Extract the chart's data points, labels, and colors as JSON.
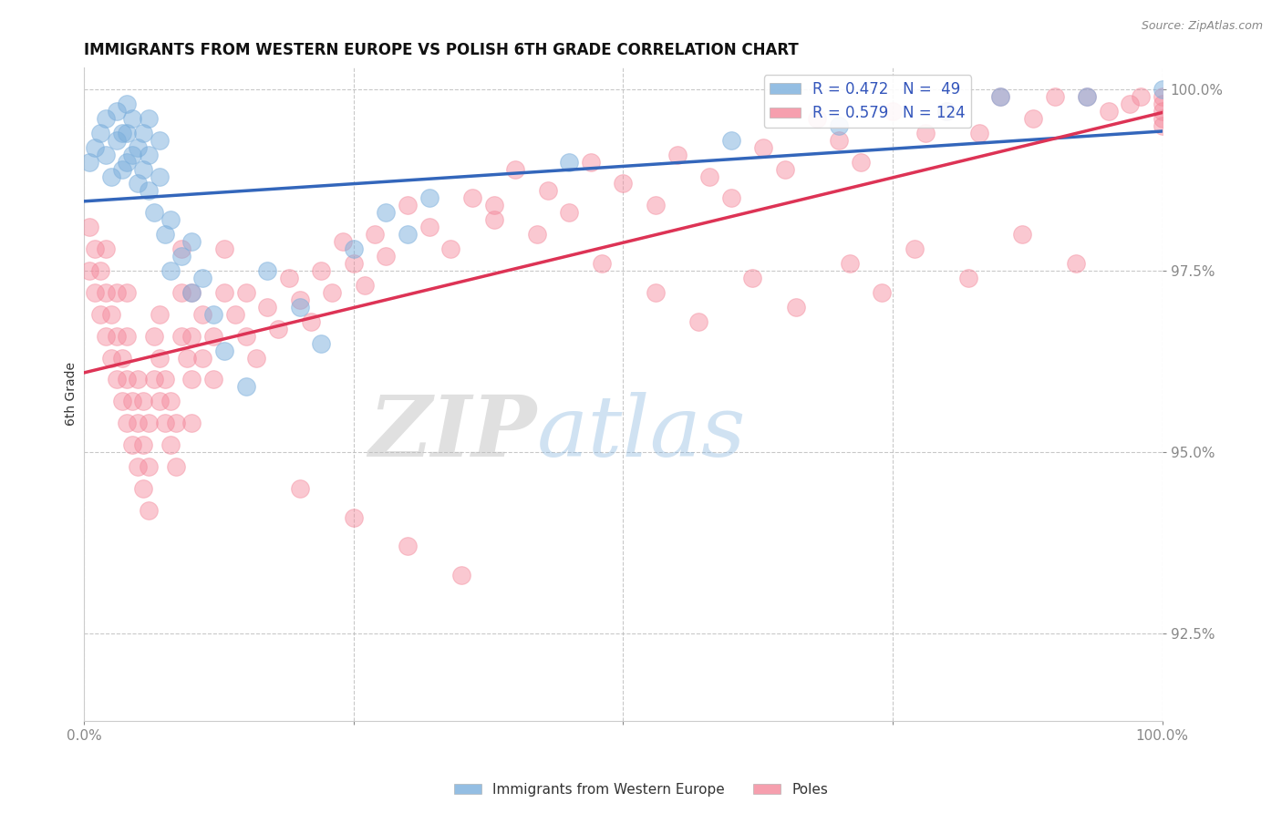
{
  "title": "IMMIGRANTS FROM WESTERN EUROPE VS POLISH 6TH GRADE CORRELATION CHART",
  "source_text": "Source: ZipAtlas.com",
  "ylabel": "6th Grade",
  "xlabel": "",
  "watermark_zip": "ZIP",
  "watermark_atlas": "atlas",
  "xlim": [
    0.0,
    1.0
  ],
  "ylim": [
    0.913,
    1.003
  ],
  "yticks": [
    0.925,
    0.95,
    0.975,
    1.0
  ],
  "ytick_labels": [
    "92.5%",
    "95.0%",
    "97.5%",
    "100.0%"
  ],
  "xticks": [
    0.0,
    0.25,
    0.5,
    0.75,
    1.0
  ],
  "xtick_labels": [
    "0.0%",
    "",
    "",
    "",
    "100.0%"
  ],
  "blue_R": 0.472,
  "blue_N": 49,
  "pink_R": 0.579,
  "pink_N": 124,
  "blue_label": "Immigrants from Western Europe",
  "pink_label": "Poles",
  "blue_color": "#7AAEDC",
  "pink_color": "#F4879A",
  "blue_line_color": "#3366BB",
  "pink_line_color": "#DD3355",
  "legend_text_color": "#3355BB",
  "blue_x": [
    0.005,
    0.01,
    0.015,
    0.02,
    0.02,
    0.025,
    0.03,
    0.03,
    0.035,
    0.035,
    0.04,
    0.04,
    0.04,
    0.045,
    0.045,
    0.05,
    0.05,
    0.055,
    0.055,
    0.06,
    0.06,
    0.06,
    0.065,
    0.07,
    0.07,
    0.075,
    0.08,
    0.08,
    0.09,
    0.1,
    0.1,
    0.11,
    0.12,
    0.13,
    0.15,
    0.17,
    0.2,
    0.22,
    0.25,
    0.28,
    0.3,
    0.32,
    0.45,
    0.6,
    0.7,
    0.8,
    0.85,
    0.93,
    1.0
  ],
  "blue_y": [
    0.99,
    0.992,
    0.994,
    0.991,
    0.996,
    0.988,
    0.993,
    0.997,
    0.989,
    0.994,
    0.99,
    0.994,
    0.998,
    0.991,
    0.996,
    0.987,
    0.992,
    0.989,
    0.994,
    0.986,
    0.991,
    0.996,
    0.983,
    0.988,
    0.993,
    0.98,
    0.975,
    0.982,
    0.977,
    0.972,
    0.979,
    0.974,
    0.969,
    0.964,
    0.959,
    0.975,
    0.97,
    0.965,
    0.978,
    0.983,
    0.98,
    0.985,
    0.99,
    0.993,
    0.995,
    0.997,
    0.999,
    0.999,
    1.0
  ],
  "pink_x": [
    0.005,
    0.005,
    0.01,
    0.01,
    0.015,
    0.015,
    0.02,
    0.02,
    0.02,
    0.025,
    0.025,
    0.03,
    0.03,
    0.03,
    0.035,
    0.035,
    0.04,
    0.04,
    0.04,
    0.04,
    0.045,
    0.045,
    0.05,
    0.05,
    0.05,
    0.055,
    0.055,
    0.055,
    0.06,
    0.06,
    0.06,
    0.065,
    0.065,
    0.07,
    0.07,
    0.07,
    0.075,
    0.075,
    0.08,
    0.08,
    0.085,
    0.085,
    0.09,
    0.09,
    0.09,
    0.095,
    0.1,
    0.1,
    0.1,
    0.1,
    0.11,
    0.11,
    0.12,
    0.12,
    0.13,
    0.13,
    0.14,
    0.15,
    0.15,
    0.16,
    0.17,
    0.18,
    0.19,
    0.2,
    0.21,
    0.22,
    0.23,
    0.24,
    0.25,
    0.26,
    0.27,
    0.28,
    0.3,
    0.32,
    0.34,
    0.36,
    0.38,
    0.4,
    0.43,
    0.45,
    0.47,
    0.5,
    0.53,
    0.55,
    0.58,
    0.6,
    0.63,
    0.65,
    0.68,
    0.7,
    0.72,
    0.75,
    0.78,
    0.8,
    0.83,
    0.85,
    0.88,
    0.9,
    0.93,
    0.95,
    0.97,
    0.98,
    1.0,
    1.0,
    1.0,
    1.0,
    1.0,
    0.38,
    0.42,
    0.48,
    0.53,
    0.57,
    0.62,
    0.66,
    0.71,
    0.74,
    0.77,
    0.82,
    0.87,
    0.92,
    0.2,
    0.25,
    0.3,
    0.35
  ],
  "pink_y": [
    0.975,
    0.981,
    0.972,
    0.978,
    0.969,
    0.975,
    0.966,
    0.972,
    0.978,
    0.963,
    0.969,
    0.96,
    0.966,
    0.972,
    0.957,
    0.963,
    0.954,
    0.96,
    0.966,
    0.972,
    0.951,
    0.957,
    0.948,
    0.954,
    0.96,
    0.945,
    0.951,
    0.957,
    0.942,
    0.948,
    0.954,
    0.96,
    0.966,
    0.957,
    0.963,
    0.969,
    0.954,
    0.96,
    0.951,
    0.957,
    0.948,
    0.954,
    0.966,
    0.972,
    0.978,
    0.963,
    0.954,
    0.96,
    0.966,
    0.972,
    0.963,
    0.969,
    0.96,
    0.966,
    0.972,
    0.978,
    0.969,
    0.966,
    0.972,
    0.963,
    0.97,
    0.967,
    0.974,
    0.971,
    0.968,
    0.975,
    0.972,
    0.979,
    0.976,
    0.973,
    0.98,
    0.977,
    0.984,
    0.981,
    0.978,
    0.985,
    0.982,
    0.989,
    0.986,
    0.983,
    0.99,
    0.987,
    0.984,
    0.991,
    0.988,
    0.985,
    0.992,
    0.989,
    0.996,
    0.993,
    0.99,
    0.997,
    0.994,
    0.997,
    0.994,
    0.999,
    0.996,
    0.999,
    0.999,
    0.997,
    0.998,
    0.999,
    0.999,
    0.998,
    0.997,
    0.996,
    0.995,
    0.984,
    0.98,
    0.976,
    0.972,
    0.968,
    0.974,
    0.97,
    0.976,
    0.972,
    0.978,
    0.974,
    0.98,
    0.976,
    0.945,
    0.941,
    0.937,
    0.933
  ]
}
